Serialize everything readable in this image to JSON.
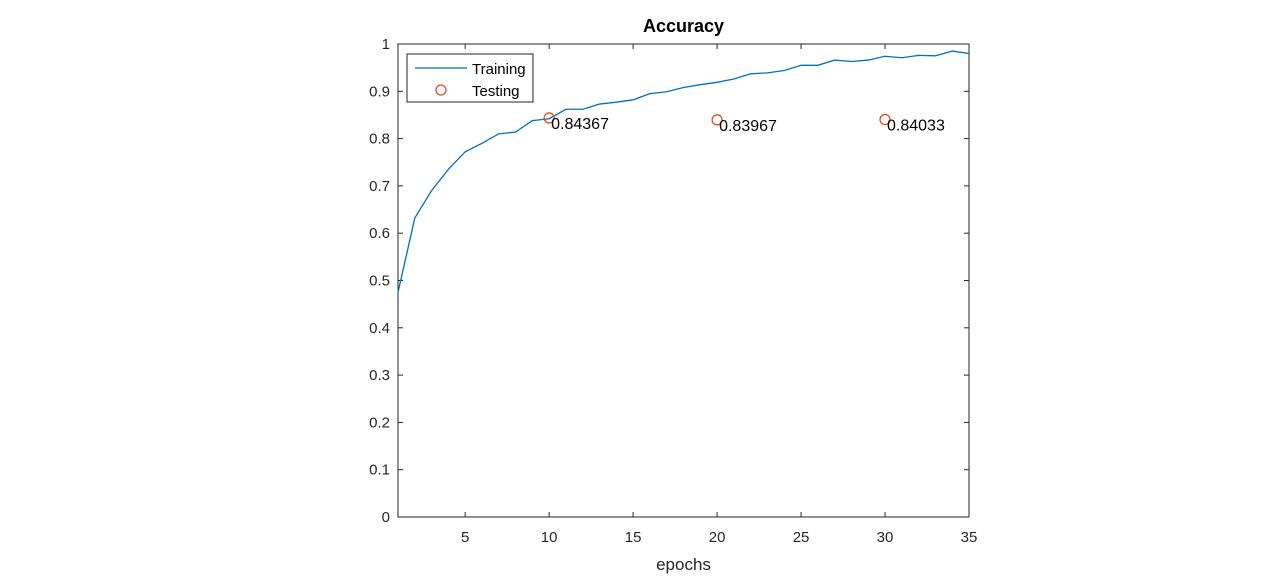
{
  "chart_data": {
    "type": "line",
    "title": "Accuracy",
    "xlabel": "epochs",
    "ylabel": "",
    "xlim": [
      1,
      35
    ],
    "ylim": [
      0,
      1
    ],
    "xticks": [
      5,
      10,
      15,
      20,
      25,
      30,
      35
    ],
    "yticks": [
      0,
      0.1,
      0.2,
      0.3,
      0.4,
      0.5,
      0.6,
      0.7,
      0.8,
      0.9,
      1
    ],
    "ytick_labels": [
      "0",
      "0.1",
      "0.2",
      "0.3",
      "0.4",
      "0.5",
      "0.6",
      "0.7",
      "0.8",
      "0.9",
      "1"
    ],
    "grid": false,
    "legend_position": "top-left",
    "series": [
      {
        "name": "Training",
        "style": "line",
        "color": "#0072BD",
        "x": [
          1,
          2,
          3,
          4,
          5,
          6,
          7,
          8,
          9,
          10,
          11,
          12,
          13,
          14,
          15,
          16,
          17,
          18,
          19,
          20,
          21,
          22,
          23,
          24,
          25,
          26,
          27,
          28,
          29,
          30,
          31,
          32,
          33,
          34,
          35
        ],
        "y": [
          0.475,
          0.632,
          0.69,
          0.735,
          0.772,
          0.79,
          0.81,
          0.814,
          0.838,
          0.842,
          0.862,
          0.862,
          0.873,
          0.877,
          0.882,
          0.895,
          0.899,
          0.908,
          0.914,
          0.919,
          0.926,
          0.937,
          0.939,
          0.944,
          0.955,
          0.955,
          0.966,
          0.963,
          0.966,
          0.974,
          0.971,
          0.976,
          0.975,
          0.985,
          0.98
        ]
      },
      {
        "name": "Testing",
        "style": "marker",
        "color": "#D95319",
        "x": [
          10,
          20,
          30
        ],
        "y": [
          0.84367,
          0.83967,
          0.84033
        ]
      }
    ],
    "annotations": [
      {
        "x": 10,
        "y": 0.84367,
        "text": "0.84367"
      },
      {
        "x": 20,
        "y": 0.83967,
        "text": "0.83967"
      },
      {
        "x": 30,
        "y": 0.84033,
        "text": "0.84033"
      }
    ]
  }
}
